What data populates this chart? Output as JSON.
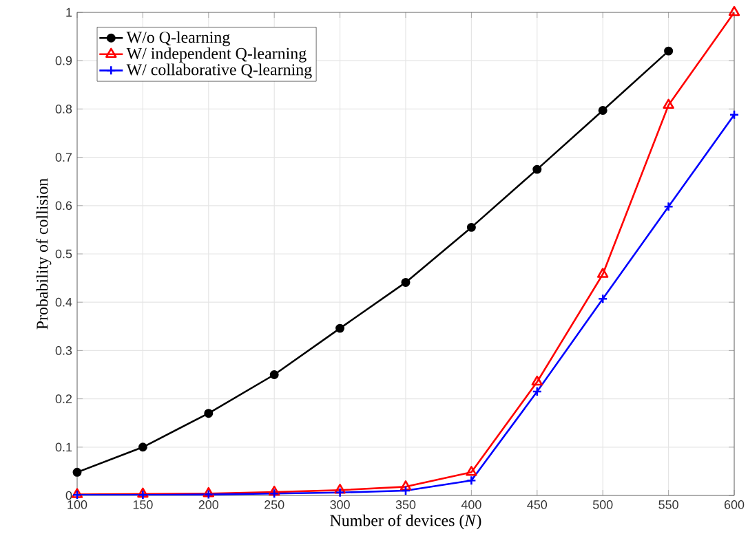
{
  "chart_data": {
    "type": "line",
    "xlabel": "Number of devices (*N*)",
    "ylabel": "Probability of collision",
    "x": [
      100,
      150,
      200,
      250,
      300,
      350,
      400,
      450,
      500,
      550,
      600
    ],
    "series": [
      {
        "name": "W/o Q-learning",
        "color": "#000000",
        "marker": "circle",
        "values": [
          0.048,
          0.1,
          0.17,
          0.25,
          0.346,
          0.441,
          0.555,
          0.675,
          0.797,
          0.92,
          null
        ]
      },
      {
        "name": "W/ independent Q-learning",
        "color": "#ff0000",
        "marker": "triangle",
        "values": [
          0.002,
          0.003,
          0.004,
          0.007,
          0.011,
          0.018,
          0.048,
          0.235,
          0.458,
          0.808,
          1.0
        ]
      },
      {
        "name": "W/ collaborative Q-learning",
        "color": "#0000ff",
        "marker": "cross",
        "values": [
          0.001,
          0.001,
          0.002,
          0.004,
          0.006,
          0.01,
          0.031,
          0.215,
          0.407,
          0.598,
          0.788
        ]
      }
    ],
    "xlim": [
      100,
      600
    ],
    "ylim": [
      0,
      1
    ],
    "xticks": [
      100,
      150,
      200,
      250,
      300,
      350,
      400,
      450,
      500,
      550,
      600
    ],
    "yticks": [
      0,
      0.1,
      0.2,
      0.3,
      0.4,
      0.5,
      0.6,
      0.7,
      0.8,
      0.9,
      1
    ],
    "grid": true,
    "legend": "top left",
    "line_style": "solid"
  }
}
